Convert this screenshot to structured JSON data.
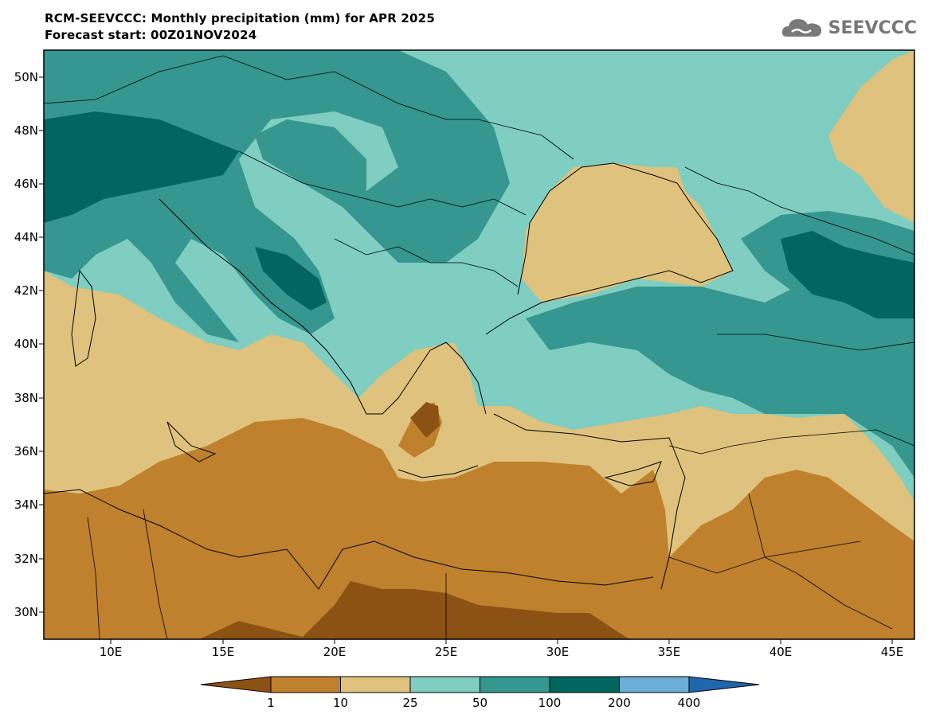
{
  "header": {
    "title": "RCM-SEEVCCC: Monthly precipitation (mm) for APR 2025",
    "subtitle": "Forecast start: 00Z01NOV2024"
  },
  "logo": {
    "text": "SEEVCCC",
    "icon": "cloud-icon"
  },
  "map": {
    "lat_labels": [
      "50N",
      "48N",
      "46N",
      "44N",
      "42N",
      "40N",
      "38N",
      "36N",
      "34N",
      "32N",
      "30N"
    ],
    "lon_labels": [
      "10E",
      "15E",
      "20E",
      "25E",
      "30E",
      "35E",
      "40E",
      "45E"
    ],
    "lon_range": [
      7,
      46
    ],
    "lat_range": [
      29,
      51
    ]
  },
  "colorbar": {
    "labels": [
      "1",
      "10",
      "25",
      "50",
      "100",
      "200",
      "400"
    ],
    "colors": [
      "#8c5214",
      "#bf812d",
      "#dfc27d",
      "#80cdc1",
      "#35978f",
      "#01665e",
      "#6baed6",
      "#2166ac"
    ]
  }
}
